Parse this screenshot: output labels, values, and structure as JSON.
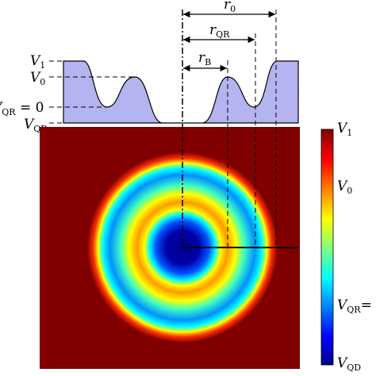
{
  "profile_labels": {
    "v1": {
      "main": "V",
      "sub": "1"
    },
    "v0": {
      "main": "V",
      "sub": "0"
    },
    "vqr": {
      "main": "V",
      "sub": "QR",
      "rest": " = 0"
    },
    "vqd": {
      "main": "V",
      "sub": "QD"
    }
  },
  "radii": {
    "r0": {
      "main": "r",
      "sub": "0"
    },
    "rqr": {
      "main": "r",
      "sub": "QR"
    },
    "rb": {
      "main": "r",
      "sub": "B"
    }
  },
  "colorbar": {
    "v1": {
      "main": "V",
      "sub": "1"
    },
    "v0": {
      "main": "V",
      "sub": "0"
    },
    "vqr": {
      "main": "V",
      "sub": "QR",
      "rest": "="
    },
    "vqd": {
      "main": "V",
      "sub": "QD"
    }
  }
}
